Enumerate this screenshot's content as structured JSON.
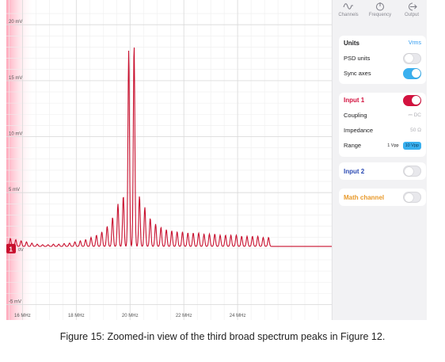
{
  "toolbar": {
    "channels_label": "Channels",
    "frequency_label": "Frequency",
    "output_label": "Output"
  },
  "units_card": {
    "title": "Units",
    "value": "Vrms",
    "psd_label": "PSD units",
    "psd_on": false,
    "sync_label": "Sync axes",
    "sync_on": true
  },
  "input1": {
    "title": "Input 1",
    "enabled": true,
    "coupling_label": "Coupling",
    "coupling_value": "DC",
    "impedance_label": "Impedance",
    "impedance_value": "50 Ω",
    "range_label": "Range",
    "range_options": [
      "1 Vpp",
      "10 Vpp"
    ],
    "range_selected": "10 Vpp"
  },
  "input2": {
    "title": "Input 2",
    "enabled": false
  },
  "math": {
    "title": "Math channel",
    "enabled": false
  },
  "marker": {
    "label": "1",
    "offset_text": "0V"
  },
  "colors": {
    "trace": "#c8102e",
    "input1": "#d3123f",
    "input2": "#2c4bb4",
    "math": "#e8992a",
    "accent": "#2f9bf0"
  },
  "caption": "Figure 15: Zoomed-in view of the third broad spectrum peaks in Figure 12.",
  "chart_data": {
    "type": "line",
    "title": "",
    "xlabel": "",
    "ylabel": "",
    "x_unit": "MHz",
    "y_unit": "mV",
    "xlim": [
      15.4,
      27.5
    ],
    "ylim": [
      -5.6,
      21.5
    ],
    "x_ticks": [
      {
        "value": 16,
        "label": "16 MHz"
      },
      {
        "value": 18,
        "label": "18 MHz"
      },
      {
        "value": 20,
        "label": "20 MHz"
      },
      {
        "value": 22,
        "label": "22 MHz"
      },
      {
        "value": 24,
        "label": "24 MHz"
      }
    ],
    "y_ticks": [
      {
        "value": 20,
        "label": "20 mV"
      },
      {
        "value": 15,
        "label": "15 mV"
      },
      {
        "value": 10,
        "label": "10 mV"
      },
      {
        "value": 5,
        "label": "5 mV"
      },
      {
        "value": -5,
        "label": "-5 mV"
      }
    ],
    "grid": true,
    "series": [
      {
        "center_mhz": 19.95,
        "peak_spacing_mhz": 0.2,
        "peak_heights_mv": [
          [
            -10,
            0.4
          ],
          [
            -9,
            0.5
          ],
          [
            -8,
            0.6
          ],
          [
            -7,
            0.8
          ],
          [
            -6,
            1.0
          ],
          [
            -5,
            1.3
          ],
          [
            -4,
            1.8
          ],
          [
            -3,
            2.6
          ],
          [
            -2,
            3.8
          ],
          [
            -1,
            4.5
          ],
          [
            0,
            17.5
          ],
          [
            1,
            18.0
          ],
          [
            2,
            4.5
          ],
          [
            3,
            3.5
          ],
          [
            4,
            2.5
          ],
          [
            5,
            2.0
          ],
          [
            6,
            1.7
          ],
          [
            7,
            1.5
          ],
          [
            8,
            1.4
          ],
          [
            9,
            1.3
          ],
          [
            10,
            1.3
          ],
          [
            11,
            1.2
          ],
          [
            12,
            1.2
          ],
          [
            13,
            1.2
          ],
          [
            14,
            1.1
          ],
          [
            15,
            1.1
          ],
          [
            16,
            1.1
          ],
          [
            17,
            1.0
          ],
          [
            18,
            1.0
          ],
          [
            19,
            1.0
          ],
          [
            20,
            1.0
          ],
          [
            21,
            0.9
          ],
          [
            22,
            0.9
          ],
          [
            23,
            0.9
          ],
          [
            24,
            0.9
          ],
          [
            25,
            0.8
          ],
          [
            26,
            0.8
          ],
          [
            -11,
            0.3
          ],
          [
            -12,
            0.25
          ],
          [
            -13,
            0.2
          ],
          [
            -14,
            0.2
          ],
          [
            -15,
            0.15
          ],
          [
            -16,
            0.15
          ],
          [
            -17,
            0.2
          ],
          [
            -18,
            0.3
          ],
          [
            -19,
            0.4
          ],
          [
            -20,
            0.5
          ],
          [
            -21,
            0.6
          ],
          [
            -22,
            0.7
          ],
          [
            -23,
            0.8
          ]
        ],
        "baseline_mv": 0.2
      }
    ]
  }
}
